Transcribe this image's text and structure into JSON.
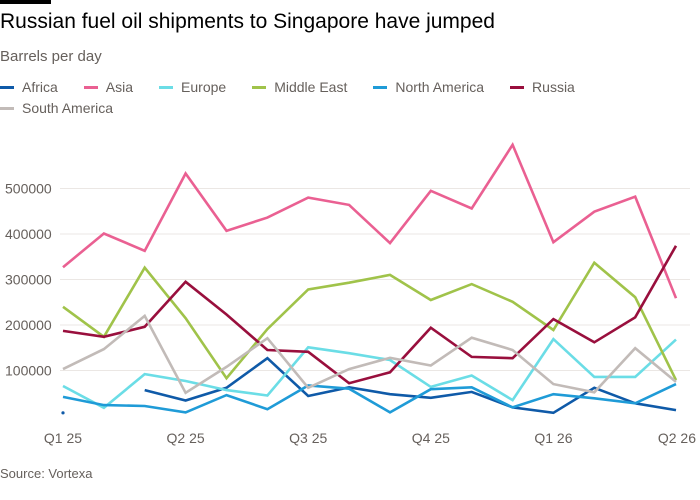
{
  "header": {
    "title": "Russian fuel oil shipments to Singapore have jumped",
    "subtitle": "Barrels per day"
  },
  "footer": {
    "source": "Source: Vortexa"
  },
  "chart_data": {
    "type": "line",
    "title": "Russian fuel oil shipments to Singapore have jumped",
    "ylabel": "Barrels per day",
    "xlabel": "",
    "ylim": [
      0,
      620000
    ],
    "grid": true,
    "legend": "top",
    "yticks": [
      100000,
      200000,
      300000,
      400000,
      500000
    ],
    "ytick_labels": [
      "100000",
      "200000",
      "300000",
      "400000",
      "500000"
    ],
    "xtick_labels": [
      "Q1 25",
      "Q2 25",
      "Q3 25",
      "Q4 25",
      "Q1 26",
      "Q2 26"
    ],
    "xtick_index": [
      0,
      3,
      6,
      9,
      12,
      15
    ],
    "x": [
      "Jan 25",
      "Feb 25",
      "Mar 25",
      "Apr 25",
      "May 25",
      "Jun 25",
      "Jul 25",
      "Aug 25",
      "Sep 25",
      "Oct 25",
      "Nov 25",
      "Dec 25",
      "Jan 26",
      "Feb 26",
      "Mar 26",
      "Apr 26"
    ],
    "series": [
      {
        "name": "Africa",
        "color": "#0f5aa8",
        "values": [
          7000,
          null,
          57000,
          34000,
          62000,
          127000,
          44000,
          63000,
          48000,
          40000,
          53000,
          19000,
          7000,
          62000,
          28000,
          13000
        ]
      },
      {
        "name": "Asia",
        "color": "#ea6092",
        "values": [
          327000,
          401000,
          363000,
          533000,
          407000,
          436000,
          480000,
          464000,
          380000,
          495000,
          456000,
          596000,
          382000,
          449000,
          482000,
          259000
        ]
      },
      {
        "name": "Europe",
        "color": "#6bdde6",
        "values": [
          66000,
          18000,
          92000,
          77000,
          57000,
          45000,
          151000,
          138000,
          123000,
          64000,
          89000,
          35000,
          169000,
          86000,
          86000,
          168000
        ]
      },
      {
        "name": "Middle East",
        "color": "#a0c34a",
        "values": [
          240000,
          174000,
          326000,
          215000,
          83000,
          191000,
          278000,
          293000,
          310000,
          255000,
          290000,
          251000,
          189000,
          337000,
          261000,
          79000
        ]
      },
      {
        "name": "North America",
        "color": "#1f9bd7",
        "values": [
          42000,
          24000,
          22000,
          8000,
          46000,
          15000,
          67000,
          60000,
          8000,
          59000,
          63000,
          19000,
          48000,
          39000,
          28000,
          70000
        ]
      },
      {
        "name": "Russia",
        "color": "#990f3d",
        "values": [
          187000,
          174000,
          196000,
          295000,
          223000,
          145000,
          141000,
          72000,
          96000,
          194000,
          130000,
          127000,
          213000,
          162000,
          217000,
          374000
        ]
      },
      {
        "name": "South America",
        "color": "#c2bbb8",
        "values": [
          103000,
          147000,
          220000,
          51000,
          108000,
          171000,
          62000,
          103000,
          128000,
          111000,
          172000,
          145000,
          70000,
          52000,
          149000,
          75000
        ]
      }
    ]
  }
}
